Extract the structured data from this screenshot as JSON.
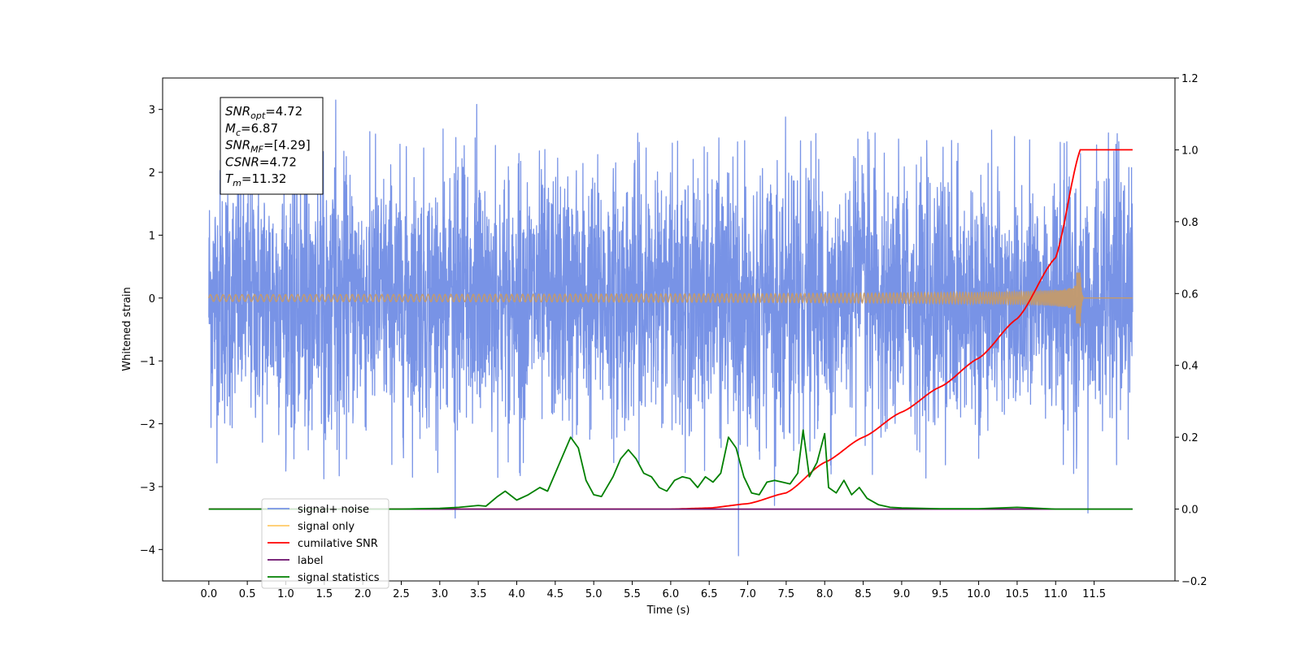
{
  "chart_data": {
    "type": "line",
    "xlabel": "Time (s)",
    "ylabel_left": "Whitened strain",
    "ylabel_right": "",
    "xlim": [
      -0.6,
      12.55
    ],
    "ylim_left": [
      -4.5,
      3.5
    ],
    "ylim_right": [
      -0.2,
      1.2
    ],
    "x_ticks": [
      0.0,
      0.5,
      1.0,
      1.5,
      2.0,
      2.5,
      3.0,
      3.5,
      4.0,
      4.5,
      5.0,
      5.5,
      6.0,
      6.5,
      7.0,
      7.5,
      8.0,
      8.5,
      9.0,
      9.5,
      10.0,
      10.5,
      11.0,
      11.5
    ],
    "x_tick_labels": [
      "0.0",
      "0.5",
      "1.0",
      "1.5",
      "2.0",
      "2.5",
      "3.0",
      "3.5",
      "4.0",
      "4.5",
      "5.0",
      "5.5",
      "6.0",
      "6.5",
      "7.0",
      "7.5",
      "8.0",
      "8.5",
      "9.0",
      "9.5",
      "10.0",
      "10.5",
      "11.0",
      "11.5"
    ],
    "y_left_ticks": [
      -4,
      -3,
      -2,
      -1,
      0,
      1,
      2,
      3
    ],
    "y_left_tick_labels": [
      "−4",
      "−3",
      "−2",
      "−1",
      "0",
      "1",
      "2",
      "3"
    ],
    "y_right_ticks": [
      -0.2,
      0.0,
      0.2,
      0.4,
      0.6,
      0.8,
      1.0,
      1.2
    ],
    "y_right_tick_labels": [
      "−0.2",
      "0.0",
      "0.2",
      "0.4",
      "0.6",
      "0.8",
      "1.0",
      "1.2"
    ],
    "grid": false,
    "legend_placement": "bottom-left",
    "annotation_box": {
      "lines": [
        {
          "sym": "SNR",
          "sub": "opt",
          "rest": "=4.72"
        },
        {
          "sym": "M",
          "sub": "c",
          "rest": "=6.87"
        },
        {
          "sym": "SNR",
          "sub": "MF",
          "rest": "=[4.29]"
        },
        {
          "sym": "CSNR",
          "sub": "",
          "rest": "=4.72"
        },
        {
          "sym": "T",
          "sub": "m",
          "rest": "=11.32"
        }
      ]
    },
    "series": [
      {
        "name": "signal+ noise",
        "axis": "left",
        "color": "#7893e6",
        "kind": "noise",
        "x_range": [
          0.0,
          12.0
        ],
        "envelope_typical": 1.0,
        "max": 3.15,
        "min": -4.1,
        "spikes": [
          [
            1.65,
            3.15
          ],
          [
            3.48,
            3.08
          ],
          [
            7.49,
            2.88
          ],
          [
            3.2,
            -3.5
          ],
          [
            6.88,
            -4.1
          ],
          [
            11.42,
            -3.42
          ],
          [
            7.35,
            -3.3
          ]
        ]
      },
      {
        "name": "signal only",
        "axis": "left",
        "color": "#ffb347",
        "kind": "chirp",
        "x_range": [
          0.0,
          12.0
        ],
        "merger_time": 11.32,
        "peak_amplitude": 0.45
      },
      {
        "name": "cumilative SNR",
        "axis": "right",
        "color": "#ff0000",
        "x": [
          0.0,
          6.0,
          6.5,
          7.0,
          7.5,
          8.0,
          8.5,
          9.0,
          9.5,
          10.0,
          10.5,
          11.0,
          11.32,
          12.0
        ],
        "y": [
          0.0,
          0.0,
          0.003,
          0.015,
          0.045,
          0.13,
          0.2,
          0.27,
          0.34,
          0.42,
          0.53,
          0.7,
          1.0,
          1.0
        ]
      },
      {
        "name": "label",
        "axis": "right",
        "color": "#6a0c6a",
        "x": [
          0.0,
          12.0
        ],
        "y": [
          0.0,
          0.0
        ]
      },
      {
        "name": "signal statistics",
        "axis": "right",
        "color": "#008000",
        "x": [
          0.0,
          2.5,
          3.0,
          3.25,
          3.5,
          3.6,
          3.75,
          3.85,
          4.0,
          4.15,
          4.3,
          4.4,
          4.5,
          4.6,
          4.7,
          4.8,
          4.9,
          5.0,
          5.1,
          5.25,
          5.35,
          5.45,
          5.55,
          5.65,
          5.75,
          5.85,
          5.95,
          6.05,
          6.15,
          6.25,
          6.35,
          6.45,
          6.55,
          6.65,
          6.75,
          6.85,
          6.95,
          7.05,
          7.15,
          7.25,
          7.35,
          7.45,
          7.55,
          7.65,
          7.72,
          7.8,
          7.9,
          8.0,
          8.05,
          8.15,
          8.25,
          8.35,
          8.45,
          8.55,
          8.7,
          8.85,
          9.0,
          9.5,
          10.0,
          10.5,
          11.0,
          11.5,
          12.0
        ],
        "y": [
          0.0,
          0.0,
          0.002,
          0.005,
          0.01,
          0.008,
          0.035,
          0.05,
          0.025,
          0.04,
          0.06,
          0.05,
          0.1,
          0.15,
          0.2,
          0.17,
          0.08,
          0.04,
          0.035,
          0.09,
          0.14,
          0.165,
          0.14,
          0.1,
          0.09,
          0.06,
          0.05,
          0.08,
          0.09,
          0.085,
          0.06,
          0.09,
          0.075,
          0.1,
          0.2,
          0.17,
          0.09,
          0.045,
          0.04,
          0.075,
          0.08,
          0.075,
          0.07,
          0.1,
          0.22,
          0.09,
          0.13,
          0.21,
          0.06,
          0.045,
          0.08,
          0.04,
          0.06,
          0.03,
          0.012,
          0.005,
          0.003,
          0.001,
          0.001,
          0.005,
          0.0,
          0.0,
          0.0
        ]
      }
    ],
    "legend_entries": [
      {
        "label": "signal+ noise",
        "color": "#7893e6"
      },
      {
        "label": "signal only",
        "color": "#ffc966"
      },
      {
        "label": "cumilative SNR",
        "color": "#ff0000"
      },
      {
        "label": "label",
        "color": "#6a0c6a"
      },
      {
        "label": "signal statistics",
        "color": "#008000"
      }
    ]
  }
}
